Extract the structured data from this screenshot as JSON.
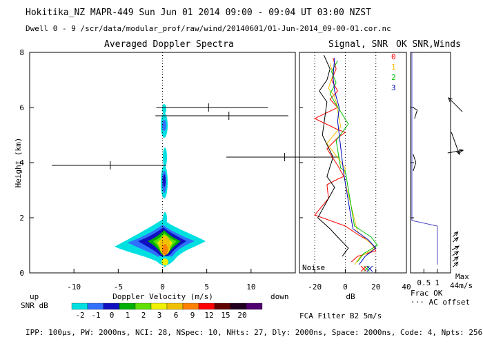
{
  "header": {
    "line1": "Hokitika_NZ  MAPR-449  Sun Jun 01 2014 09:00 - 09:04 UT 03:00 NZST",
    "line2": "Dwell  0 -  9   /scr/data/modular_prof/raw/wind/20140601/01-Jun-2014_09-00-01.cor.nc"
  },
  "footer": {
    "params": "IPP: 100μs, PW: 2000ns, NCI: 28, NSpec: 10, NHts: 27, Dly: 2000ns, Space: 2000ns, Code: 4, Npts: 256",
    "filter": "FCA Filter B2  5m/s"
  },
  "colors": {
    "snr_colorbar": [
      "#00e0e0",
      "#3070ff",
      "#1010c0",
      "#00b000",
      "#60e000",
      "#f0f000",
      "#f0c000",
      "#ff8000",
      "#ff0000",
      "#600000",
      "#200020",
      "#500070"
    ],
    "dwell": [
      "#ff0000",
      "#f0c000",
      "#00c000",
      "#0000c0"
    ]
  },
  "chart_data": [
    {
      "id": "spectra",
      "type": "heatmap",
      "title": "Averaged Doppler Spectra",
      "xlabel": "Doppler Velocity (m/s)",
      "ylabel": "Height (km)",
      "xlim": [
        -15,
        15
      ],
      "ylim": [
        0,
        8
      ],
      "xticks": [
        "-10",
        "-5",
        "0",
        "5",
        "10"
      ],
      "yticks": [
        "0",
        "2",
        "4",
        "6",
        "8"
      ],
      "up_label": "up",
      "down_label": "down",
      "colorbar_label": "SNR dB",
      "colorbar_ticks": [
        "-2",
        "-1",
        "0",
        "1",
        "2",
        "3",
        "6",
        "9",
        "12",
        "15",
        "20"
      ],
      "moments": [
        {
          "h": 6.0,
          "v": 5.2,
          "lo": -0.7,
          "hi": 11.9
        },
        {
          "h": 5.7,
          "v": 7.5,
          "lo": -0.8,
          "hi": 14.2
        },
        {
          "h": 4.2,
          "v": 13.8,
          "lo": 7.2,
          "hi": 20
        },
        {
          "h": 3.9,
          "v": -5.9,
          "lo": -12.5,
          "hi": 0.4
        }
      ]
    },
    {
      "id": "signal",
      "type": "line",
      "title": "Signal, SNR",
      "xlabel": "dB",
      "xlim": [
        -30,
        40
      ],
      "xticks": [
        "-20",
        "0",
        "20",
        "40"
      ],
      "noise_label": "Noise",
      "legend": [
        "0",
        "1",
        "2",
        "3"
      ],
      "series": [
        {
          "name": "0",
          "points": [
            [
              -8,
              7.8
            ],
            [
              -6,
              7.4
            ],
            [
              -9,
              7.0
            ],
            [
              -5,
              6.6
            ],
            [
              -10,
              6.3
            ],
            [
              -5,
              6.0
            ],
            [
              -20,
              5.6
            ],
            [
              -5,
              5.2
            ],
            [
              0,
              5.1
            ],
            [
              -5,
              4.9
            ],
            [
              -12,
              4.5
            ],
            [
              -5,
              3.9
            ],
            [
              -1,
              3.5
            ],
            [
              -5,
              3.4
            ],
            [
              -12,
              3.2
            ],
            [
              -11,
              2.7
            ],
            [
              -20,
              2.1
            ],
            [
              -10,
              1.9
            ],
            [
              0,
              1.7
            ],
            [
              8,
              1.4
            ],
            [
              14,
              1.2
            ],
            [
              18,
              1.0
            ],
            [
              20,
              0.8
            ],
            [
              8,
              0.6
            ],
            [
              4,
              0.4
            ]
          ]
        },
        {
          "name": "1",
          "points": [
            [
              -10,
              7.6
            ],
            [
              -8,
              7.2
            ],
            [
              -11,
              6.7
            ],
            [
              -7,
              6.4
            ],
            [
              -6,
              6.2
            ],
            [
              -3,
              5.3
            ],
            [
              -12,
              4.7
            ],
            [
              0,
              3.8
            ],
            [
              -1,
              3.5
            ],
            [
              8,
              1.5
            ],
            [
              16,
              1.1
            ],
            [
              20,
              0.9
            ],
            [
              10,
              0.6
            ],
            [
              6,
              0.3
            ]
          ]
        },
        {
          "name": "2",
          "points": [
            [
              -5,
              7.7
            ],
            [
              -9,
              7.3
            ],
            [
              -6,
              6.9
            ],
            [
              -10,
              6.5
            ],
            [
              -7,
              6.2
            ],
            [
              2,
              5.4
            ],
            [
              -6,
              4.8
            ],
            [
              -3,
              3.8
            ],
            [
              0,
              3.7
            ],
            [
              6,
              1.7
            ],
            [
              17,
              1.3
            ],
            [
              21,
              1.0
            ],
            [
              12,
              0.7
            ],
            [
              8,
              0.4
            ]
          ]
        },
        {
          "name": "3",
          "points": [
            [
              -7,
              7.8
            ],
            [
              -8,
              7.1
            ],
            [
              -7,
              6.6
            ],
            [
              -4,
              6.0
            ],
            [
              -5,
              5.5
            ],
            [
              -1,
              3.6
            ],
            [
              5,
              1.6
            ],
            [
              15,
              1.2
            ],
            [
              20,
              0.9
            ],
            [
              13,
              0.6
            ],
            [
              9,
              0.3
            ]
          ]
        }
      ]
    },
    {
      "id": "okwinds",
      "type": "line",
      "title": "OK SNR,Winds",
      "xlabel": "Frac OK",
      "xticks": [
        "0.5",
        "1"
      ],
      "xlim": [
        0,
        1.5
      ],
      "max_label": "Max",
      "max_speed": "44m/s",
      "ac_offset_label": "··· AC offset",
      "frac_ok": [
        [
          0.05,
          8.0
        ],
        [
          0.05,
          1.9
        ],
        [
          1.0,
          1.7
        ],
        [
          1.0,
          0.3
        ]
      ],
      "winds": [
        {
          "h": 6.1,
          "speed": 25,
          "dir": 315
        },
        {
          "h": 4.7,
          "speed": 30,
          "dir": 160
        },
        {
          "h": 4.4,
          "speed": 20,
          "dir": 80
        },
        {
          "h": 1.4,
          "speed": 8,
          "dir": 45
        },
        {
          "h": 1.2,
          "speed": 8,
          "dir": 50
        },
        {
          "h": 0.9,
          "speed": 10,
          "dir": 60
        },
        {
          "h": 0.7,
          "speed": 9,
          "dir": 55
        },
        {
          "h": 0.5,
          "speed": 9,
          "dir": 50
        },
        {
          "h": 0.3,
          "speed": 8,
          "dir": 45
        }
      ]
    }
  ]
}
